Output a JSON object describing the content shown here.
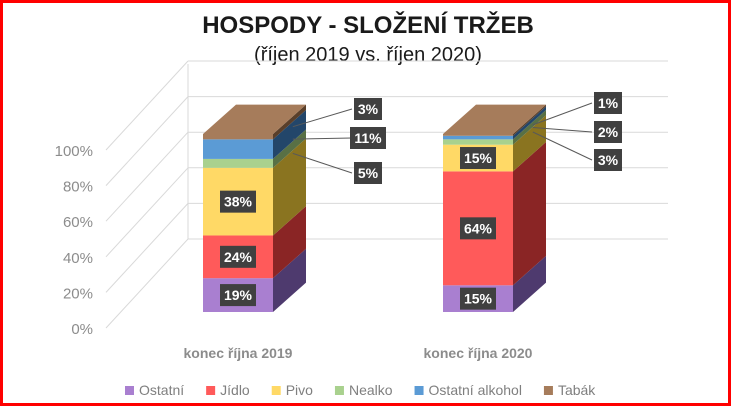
{
  "chart_data": {
    "type": "bar",
    "stacked": "percent",
    "title": "HOSPODY - SLOŽENÍ TRŽEB",
    "subtitle": "(říjen 2019 vs. říjen 2020)",
    "categories": [
      "konec října 2019",
      "konec října 2020"
    ],
    "y_ticks": [
      "0%",
      "20%",
      "40%",
      "60%",
      "80%",
      "100%"
    ],
    "ylim": [
      0,
      100
    ],
    "grid": true,
    "legend_position": "bottom",
    "series": [
      {
        "name": "Ostatní",
        "color": "#a97fd0",
        "dark": "#4e3a6e",
        "values": [
          19,
          15
        ],
        "labels": [
          "19%",
          "15%"
        ]
      },
      {
        "name": "Jídlo",
        "color": "#ff5a5a",
        "dark": "#8a2525",
        "values": [
          24,
          64
        ],
        "labels": [
          "24%",
          "64%"
        ]
      },
      {
        "name": "Pivo",
        "color": "#ffd966",
        "dark": "#8a7420",
        "values": [
          38,
          15
        ],
        "labels": [
          "38%",
          "15%"
        ]
      },
      {
        "name": "Nealko",
        "color": "#a9d18e",
        "dark": "#587045",
        "values": [
          5,
          3
        ],
        "labels": [
          "5%",
          "3%"
        ]
      },
      {
        "name": "Ostatní alkohol",
        "color": "#5b9bd5",
        "dark": "#23466a",
        "values": [
          11,
          2
        ],
        "labels": [
          "11%",
          "2%"
        ]
      },
      {
        "name": "Tabák",
        "color": "#a67c5b",
        "dark": "#5a3f2a",
        "values": [
          3,
          1
        ],
        "labels": [
          "3%",
          "1%"
        ]
      }
    ]
  }
}
